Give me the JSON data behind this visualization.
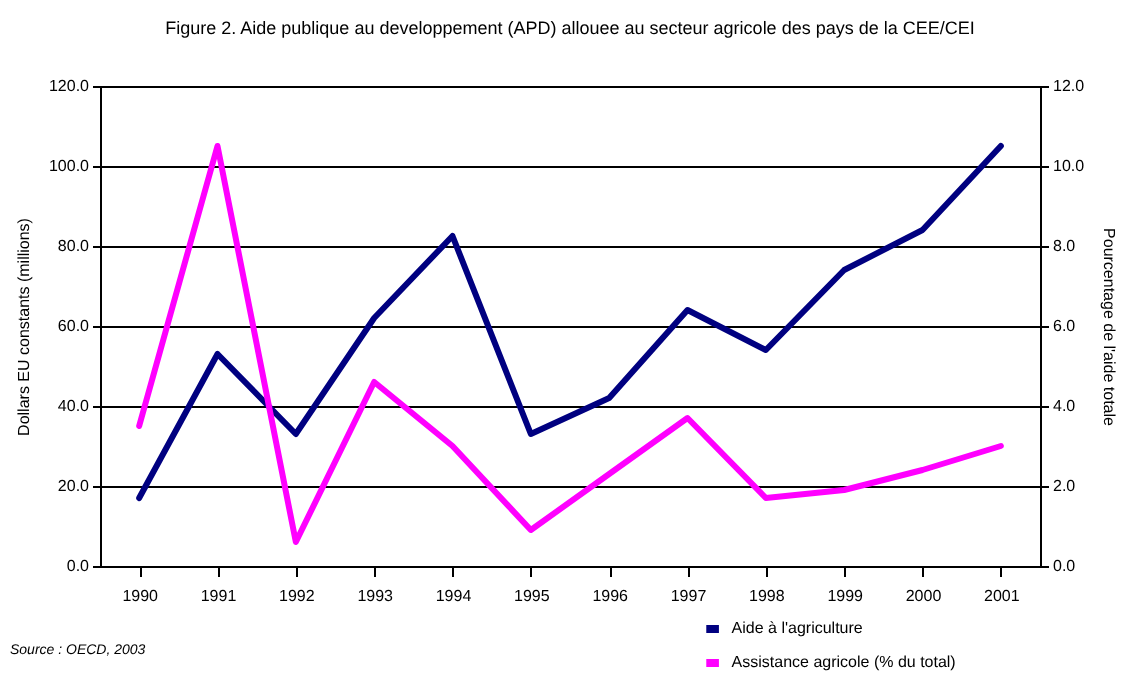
{
  "chart_data": {
    "type": "line",
    "title": "Figure 2. Aide publique au developpement (APD) allouee au secteur agricole des pays de la CEE/CEI",
    "ylabel": "Dollars EU constants (millions)",
    "y2label": "Pourcentage de l'aide totale",
    "annotations": [
      "Source : OECD, 2003"
    ],
    "categories": [
      "1990",
      "1991",
      "1992",
      "1993",
      "1994",
      "1995",
      "1996",
      "1997",
      "1998",
      "1999",
      "2000",
      "2001"
    ],
    "series": [
      {
        "name": "Aide à l'agriculture",
        "color": "#000080",
        "values": [
          17,
          53,
          33,
          62,
          82.5,
          33,
          42,
          64,
          54,
          74,
          84,
          105
        ]
      },
      {
        "name": "Assistance agricole (% du total)",
        "color": "#ff00ff",
        "axis": "y2",
        "values": [
          3.5,
          10.5,
          0.6,
          4.6,
          3.0,
          0.9,
          2.3,
          3.7,
          1.7,
          1.9,
          2.4,
          3.0
        ]
      }
    ],
    "ylim": [
      0,
      120
    ],
    "yticks": [
      {
        "value": 0,
        "label": "0.0"
      },
      {
        "value": 20,
        "label": "20.0"
      },
      {
        "value": 40,
        "label": "40.0"
      },
      {
        "value": 60,
        "label": "60.0"
      },
      {
        "value": 80,
        "label": "80.0"
      },
      {
        "value": 100,
        "label": "100.0"
      },
      {
        "value": 120,
        "label": "120.0"
      }
    ],
    "y2lim": [
      0,
      12
    ],
    "y2ticks": [
      {
        "value": 0,
        "label": "0.0"
      },
      {
        "value": 2,
        "label": "2.0"
      },
      {
        "value": 4,
        "label": "4.0"
      },
      {
        "value": 6,
        "label": "6.0"
      },
      {
        "value": 8,
        "label": "8.0"
      },
      {
        "value": 10,
        "label": "10.0"
      },
      {
        "value": 12,
        "label": "12.0"
      }
    ],
    "grid": "y",
    "legend": "bottom right",
    "marker": "none",
    "line_style": "solid"
  }
}
